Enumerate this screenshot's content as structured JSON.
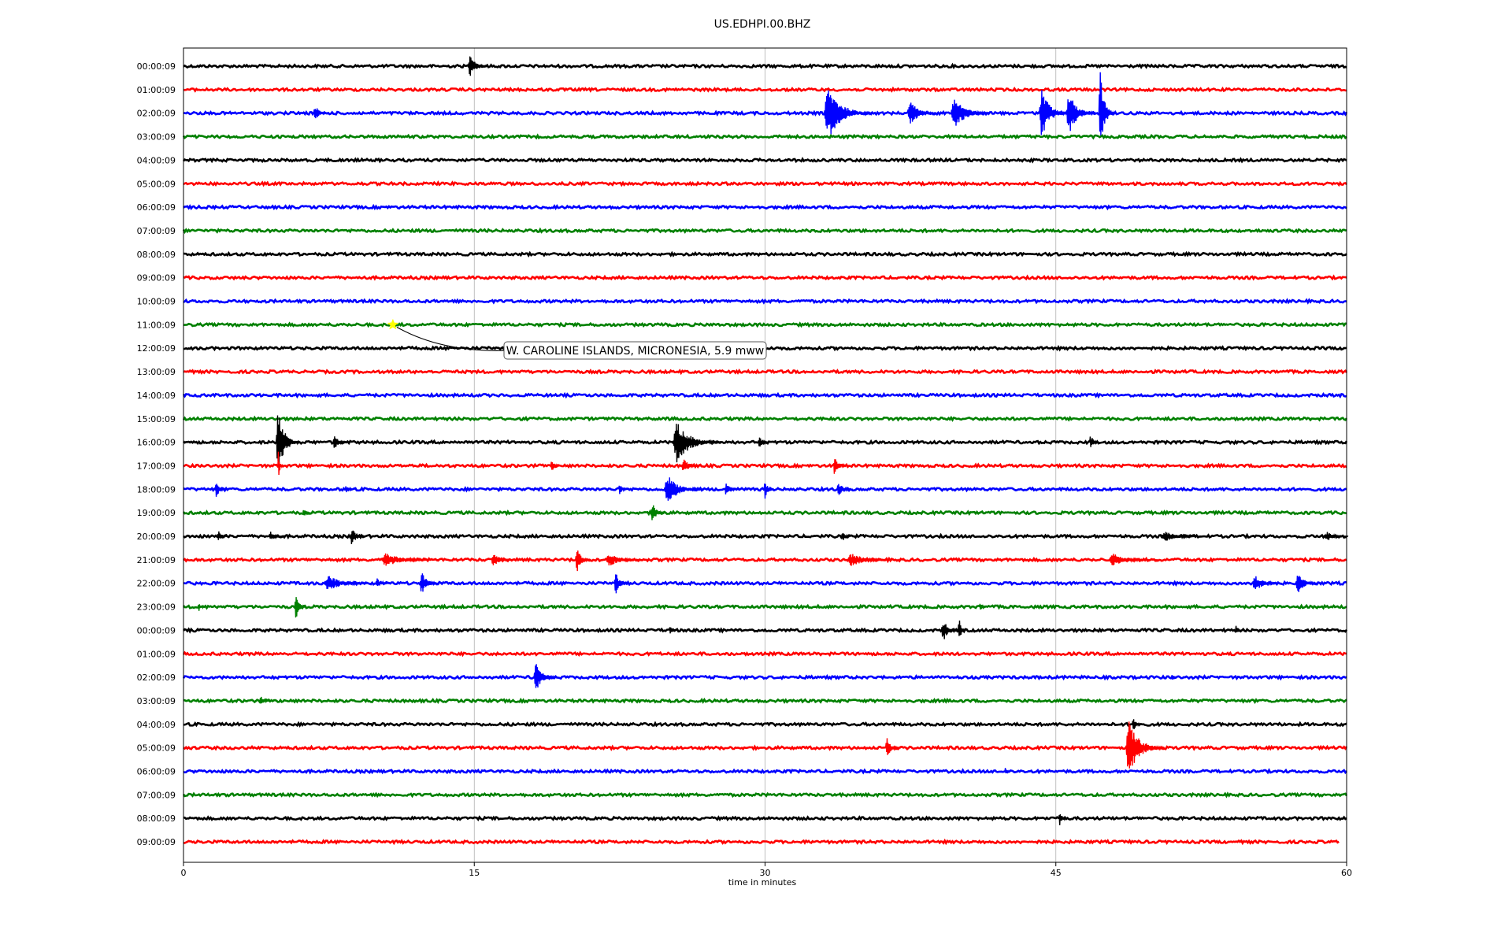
{
  "chart_data": {
    "type": "line",
    "title": "US.EDHPI.00.BHZ",
    "xlabel": "time in minutes",
    "ylabel": "",
    "xlim": [
      0,
      60
    ],
    "xticks": [
      0,
      15,
      30,
      45,
      60
    ],
    "grid": "vertical",
    "trace_colors": [
      "#000000",
      "#ff0000",
      "#0000ff",
      "#008000"
    ],
    "rows": [
      {
        "label": "00:00:09",
        "events": [
          {
            "t": 14.8,
            "amp": 0.7,
            "dur": 1.0
          }
        ]
      },
      {
        "label": "01:00:09",
        "events": []
      },
      {
        "label": "02:00:09",
        "events": [
          {
            "t": 6.8,
            "amp": 0.5,
            "dur": 0.8
          },
          {
            "t": 33.3,
            "amp": 1.6,
            "dur": 2.5
          },
          {
            "t": 37.5,
            "amp": 0.8,
            "dur": 1.5
          },
          {
            "t": 39.8,
            "amp": 1.0,
            "dur": 2.0
          },
          {
            "t": 44.3,
            "amp": 1.5,
            "dur": 1.5
          },
          {
            "t": 45.7,
            "amp": 1.3,
            "dur": 1.5
          },
          {
            "t": 47.3,
            "amp": 2.6,
            "dur": 0.8
          }
        ]
      },
      {
        "label": "03:00:09",
        "events": []
      },
      {
        "label": "04:00:09",
        "events": []
      },
      {
        "label": "05:00:09",
        "events": []
      },
      {
        "label": "06:00:09",
        "events": []
      },
      {
        "label": "07:00:09",
        "events": []
      },
      {
        "label": "08:00:09",
        "events": []
      },
      {
        "label": "09:00:09",
        "events": []
      },
      {
        "label": "10:00:09",
        "events": []
      },
      {
        "label": "11:00:09",
        "events": []
      },
      {
        "label": "12:00:09",
        "events": []
      },
      {
        "label": "13:00:09",
        "events": []
      },
      {
        "label": "14:00:09",
        "events": []
      },
      {
        "label": "15:00:09",
        "events": []
      },
      {
        "label": "16:00:09",
        "events": [
          {
            "t": 4.9,
            "amp": 2.0,
            "dur": 1.2
          },
          {
            "t": 7.8,
            "amp": 0.5,
            "dur": 0.8
          },
          {
            "t": 25.5,
            "amp": 1.2,
            "dur": 2.5
          },
          {
            "t": 29.7,
            "amp": 0.4,
            "dur": 0.6
          },
          {
            "t": 46.8,
            "amp": 0.5,
            "dur": 0.5
          }
        ]
      },
      {
        "label": "17:00:09",
        "events": [
          {
            "t": 4.9,
            "amp": 0.9,
            "dur": 0.3
          },
          {
            "t": 19.0,
            "amp": 0.4,
            "dur": 0.5
          },
          {
            "t": 25.8,
            "amp": 0.5,
            "dur": 1.0
          },
          {
            "t": 33.6,
            "amp": 0.6,
            "dur": 0.8
          }
        ]
      },
      {
        "label": "18:00:09",
        "events": [
          {
            "t": 1.7,
            "amp": 0.5,
            "dur": 0.6
          },
          {
            "t": 8.4,
            "amp": 0.3,
            "dur": 0.5
          },
          {
            "t": 22.5,
            "amp": 0.4,
            "dur": 0.5
          },
          {
            "t": 25.0,
            "amp": 0.9,
            "dur": 2.0
          },
          {
            "t": 28.0,
            "amp": 0.4,
            "dur": 0.8
          },
          {
            "t": 30.0,
            "amp": 0.6,
            "dur": 0.5
          },
          {
            "t": 33.8,
            "amp": 0.5,
            "dur": 0.8
          }
        ]
      },
      {
        "label": "19:00:09",
        "events": [
          {
            "t": 6.2,
            "amp": 0.3,
            "dur": 0.4
          },
          {
            "t": 24.2,
            "amp": 0.6,
            "dur": 0.8
          }
        ]
      },
      {
        "label": "20:00:09",
        "events": [
          {
            "t": 1.8,
            "amp": 0.4,
            "dur": 0.5
          },
          {
            "t": 4.5,
            "amp": 0.3,
            "dur": 0.8
          },
          {
            "t": 8.7,
            "amp": 0.6,
            "dur": 0.8
          },
          {
            "t": 34.0,
            "amp": 0.4,
            "dur": 0.5
          },
          {
            "t": 50.7,
            "amp": 0.3,
            "dur": 2.5
          },
          {
            "t": 59.0,
            "amp": 0.3,
            "dur": 1.2
          }
        ]
      },
      {
        "label": "21:00:09",
        "events": [
          {
            "t": 10.5,
            "amp": 0.4,
            "dur": 3.0
          },
          {
            "t": 16.0,
            "amp": 0.4,
            "dur": 1.2
          },
          {
            "t": 20.3,
            "amp": 0.8,
            "dur": 0.8
          },
          {
            "t": 22.0,
            "amp": 0.4,
            "dur": 2.0
          },
          {
            "t": 34.5,
            "amp": 0.4,
            "dur": 2.5
          },
          {
            "t": 48.0,
            "amp": 0.4,
            "dur": 2.5
          }
        ]
      },
      {
        "label": "22:00:09",
        "events": [
          {
            "t": 7.5,
            "amp": 0.5,
            "dur": 2.5
          },
          {
            "t": 10.0,
            "amp": 0.3,
            "dur": 0.8
          },
          {
            "t": 12.3,
            "amp": 0.7,
            "dur": 1.0
          },
          {
            "t": 22.3,
            "amp": 0.7,
            "dur": 0.8
          },
          {
            "t": 55.3,
            "amp": 0.5,
            "dur": 1.5
          },
          {
            "t": 57.5,
            "amp": 0.7,
            "dur": 1.2
          }
        ]
      },
      {
        "label": "23:00:09",
        "events": [
          {
            "t": 0.8,
            "amp": 0.3,
            "dur": 0.5
          },
          {
            "t": 5.8,
            "amp": 0.8,
            "dur": 0.6
          },
          {
            "t": 41.1,
            "amp": 0.3,
            "dur": 0.4
          }
        ]
      },
      {
        "label": "00:00:09",
        "events": [
          {
            "t": 25.1,
            "amp": 0.3,
            "dur": 0.4
          },
          {
            "t": 39.2,
            "amp": 0.7,
            "dur": 1.0
          },
          {
            "t": 40.0,
            "amp": 0.9,
            "dur": 0.4
          },
          {
            "t": 54.3,
            "amp": 0.3,
            "dur": 0.3
          }
        ]
      },
      {
        "label": "01:00:09",
        "events": []
      },
      {
        "label": "02:00:09",
        "events": [
          {
            "t": 18.2,
            "amp": 0.9,
            "dur": 1.2
          },
          {
            "t": 51.0,
            "amp": 0.2,
            "dur": 0.3
          }
        ]
      },
      {
        "label": "03:00:09",
        "events": [
          {
            "t": 4.0,
            "amp": 0.3,
            "dur": 0.6
          }
        ]
      },
      {
        "label": "04:00:09",
        "events": [
          {
            "t": 49.0,
            "amp": 0.4,
            "dur": 0.6
          }
        ]
      },
      {
        "label": "05:00:09",
        "events": [
          {
            "t": 36.3,
            "amp": 0.6,
            "dur": 0.8
          },
          {
            "t": 48.8,
            "amp": 1.6,
            "dur": 2.0
          }
        ]
      },
      {
        "label": "06:00:09",
        "events": [
          {
            "t": 42.4,
            "amp": 0.3,
            "dur": 0.3
          }
        ]
      },
      {
        "label": "07:00:09",
        "events": []
      },
      {
        "label": "08:00:09",
        "events": [
          {
            "t": 45.2,
            "amp": 0.5,
            "dur": 0.5
          }
        ]
      },
      {
        "label": "09:00:09",
        "events": []
      }
    ],
    "annotations": [
      {
        "text": "W. CAROLINE ISLANDS, MICRONESIA, 5.9 mww",
        "row": 11,
        "t": 10.8,
        "marker": "star",
        "marker_color": "#ffff00"
      }
    ]
  }
}
